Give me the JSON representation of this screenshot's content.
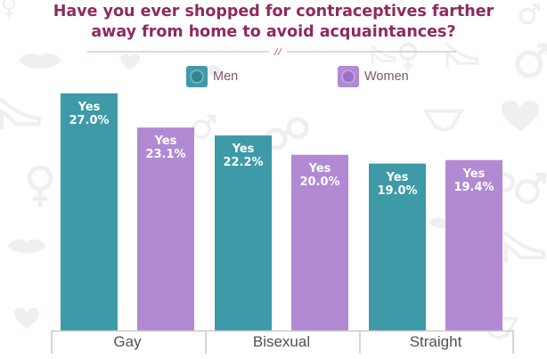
{
  "title_line1": "Have you ever shopped for contraceptives farther",
  "title_line2": "away from home to avoid acquaintances?",
  "background_icons": [
    "lips-icon",
    "mars-symbol-icon",
    "venus-symbol-icon",
    "heart-icon",
    "high-heel-icon",
    "handcuffs-icon",
    "lingerie-icon"
  ],
  "colors": {
    "men": "#3d9aa6",
    "women": "#b18ad3",
    "title": "#8e2a5e",
    "axis": "#c9c9c9"
  },
  "chart_data": {
    "type": "bar",
    "categories": [
      "Gay",
      "Bisexual",
      "Straight"
    ],
    "series": [
      {
        "name": "Men",
        "values": [
          27.0,
          22.2,
          19.0
        ],
        "labels": [
          "27.0%",
          "22.2%",
          "19.0%"
        ]
      },
      {
        "name": "Women",
        "values": [
          23.1,
          20.0,
          19.4
        ],
        "labels": [
          "23.1%",
          "20.0%",
          "19.4%"
        ]
      }
    ],
    "data_label_prefix": "Yes",
    "title": "Have you ever shopped for contraceptives farther away from home to avoid acquaintances?",
    "xlabel": "",
    "ylabel": "",
    "ylim": [
      0,
      29
    ],
    "grid": false,
    "legend": "top"
  }
}
